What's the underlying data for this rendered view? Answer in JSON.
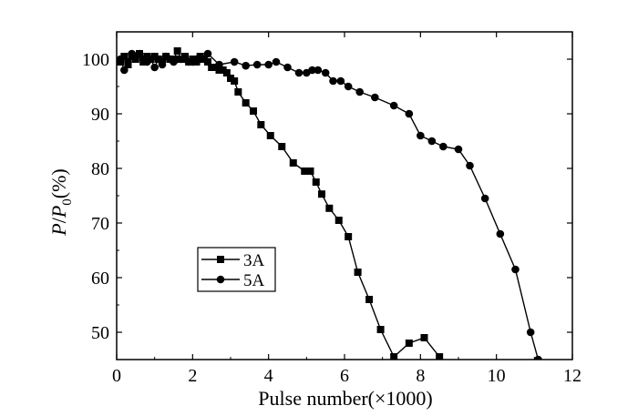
{
  "chart_data": {
    "type": "line",
    "xlabel": "Pulse number(×1000)",
    "ylabel": {
      "lead": "P",
      "slash": "/",
      "italic": "P",
      "subscript": "0",
      "suffix": "(%)"
    },
    "xlim": [
      0,
      12
    ],
    "ylim": [
      45,
      105
    ],
    "xticks": [
      0,
      2,
      4,
      6,
      8,
      10,
      12
    ],
    "yticks": [
      50,
      60,
      70,
      80,
      90,
      100
    ],
    "grid": false,
    "legend_position": "lower-left",
    "series": [
      {
        "name": "3A",
        "marker": "square",
        "x": [
          0.1,
          0.2,
          0.3,
          0.4,
          0.5,
          0.6,
          0.7,
          0.8,
          0.9,
          1.0,
          1.1,
          1.2,
          1.3,
          1.4,
          1.5,
          1.6,
          1.7,
          1.8,
          1.9,
          2.0,
          2.1,
          2.2,
          2.3,
          2.4,
          2.5,
          2.6,
          2.7,
          2.8,
          2.9,
          3.0,
          3.1,
          3.2,
          3.4,
          3.6,
          3.8,
          4.05,
          4.35,
          4.65,
          4.95,
          5.1,
          5.25,
          5.4,
          5.6,
          5.85,
          6.1,
          6.35,
          6.65,
          6.95,
          7.3,
          7.7,
          8.1,
          8.5
        ],
        "y": [
          99.5,
          100.5,
          99,
          100.5,
          100,
          101,
          99.5,
          100.5,
          100,
          100.5,
          100,
          99.5,
          100.5,
          100,
          100,
          101.5,
          100,
          100.5,
          99.5,
          100,
          99.5,
          100.5,
          100,
          99.5,
          98.5,
          98.5,
          98,
          98,
          97.5,
          96.5,
          96,
          94,
          92,
          90.5,
          88,
          86,
          84,
          81,
          79.5,
          79.5,
          77.5,
          75.3,
          72.7,
          70.5,
          67.5,
          61,
          56,
          50.5,
          45.5,
          48,
          49,
          45.5
        ]
      },
      {
        "name": "5A",
        "marker": "circle",
        "x": [
          0.1,
          0.2,
          0.3,
          0.4,
          0.5,
          0.6,
          0.7,
          0.8,
          0.9,
          1.0,
          1.1,
          1.2,
          1.3,
          1.4,
          1.5,
          1.6,
          1.7,
          1.8,
          1.9,
          2.0,
          2.1,
          2.2,
          2.3,
          2.4,
          2.7,
          3.1,
          3.4,
          3.7,
          4.0,
          4.2,
          4.5,
          4.8,
          5.0,
          5.15,
          5.3,
          5.5,
          5.7,
          5.9,
          6.1,
          6.4,
          6.8,
          7.3,
          7.7,
          8.0,
          8.3,
          8.6,
          9.0,
          9.3,
          9.7,
          10.1,
          10.5,
          10.9,
          11.1
        ],
        "y": [
          100,
          98,
          99.5,
          101,
          100.5,
          101,
          100,
          99.5,
          100,
          98.5,
          100,
          99,
          100.5,
          100,
          99.5,
          100,
          100,
          100,
          99.5,
          99.5,
          100,
          100,
          100,
          101,
          99,
          99.5,
          98.8,
          99,
          99,
          99.5,
          98.5,
          97.5,
          97.5,
          98,
          98,
          97.5,
          96,
          96,
          95,
          94,
          93,
          91.5,
          90,
          86,
          85,
          84,
          83.5,
          80.5,
          74.5,
          68,
          61.5,
          50,
          45
        ]
      }
    ]
  }
}
